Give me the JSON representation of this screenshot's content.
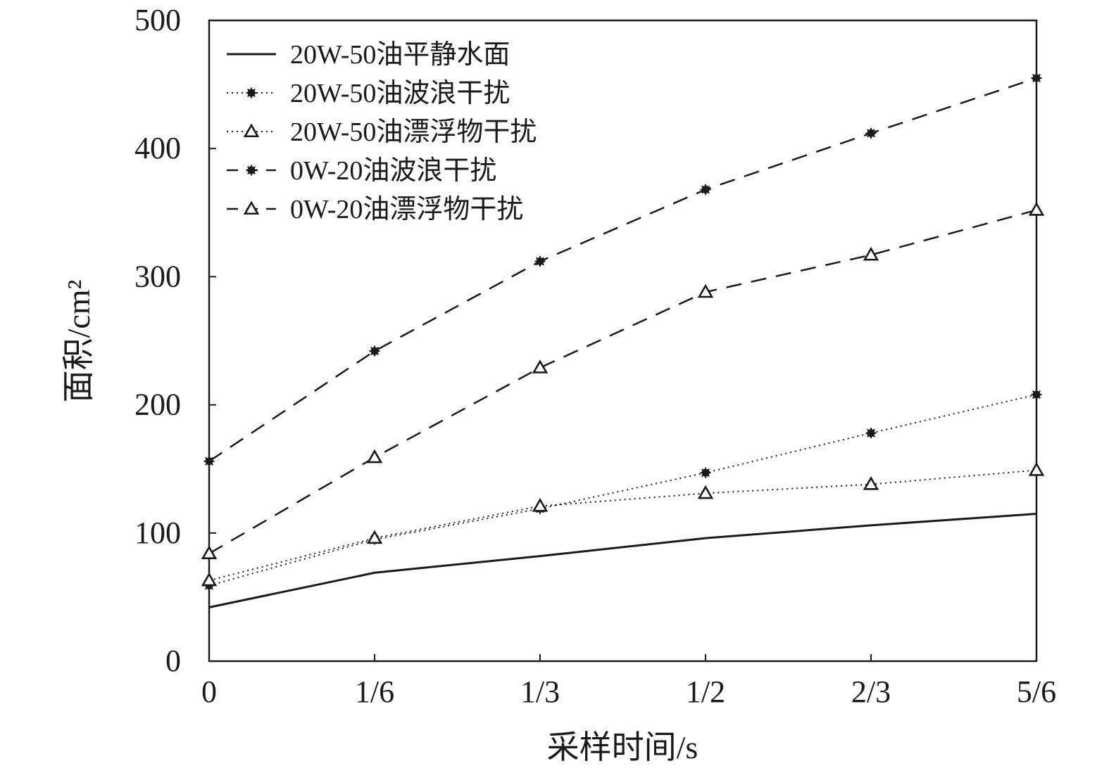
{
  "chart_data": {
    "type": "line",
    "xlabel": "采样时间/s",
    "ylabel": "面积/cm²",
    "categories": [
      "0",
      "1/6",
      "1/3",
      "1/2",
      "2/3",
      "5/6"
    ],
    "ylim": [
      0,
      500
    ],
    "yticks": [
      0,
      100,
      200,
      300,
      400,
      500
    ],
    "grid": false,
    "legend_position": "top-left",
    "series": [
      {
        "name": "20W-50油平静水面",
        "style": "solid",
        "marker": "none",
        "values": [
          42,
          69,
          82,
          96,
          106,
          115
        ]
      },
      {
        "name": "20W-50油波浪干扰",
        "style": "dotted",
        "marker": "star",
        "values": [
          59,
          95,
          119,
          147,
          178,
          208
        ]
      },
      {
        "name": "20W-50油漂浮物干扰",
        "style": "dotted",
        "marker": "triangle",
        "values": [
          63,
          96,
          121,
          131,
          138,
          149
        ]
      },
      {
        "name": "0W-20油波浪干扰",
        "style": "dashed",
        "marker": "star",
        "values": [
          156,
          242,
          312,
          368,
          412,
          455
        ]
      },
      {
        "name": "0W-20油漂浮物干扰",
        "style": "dashed",
        "marker": "triangle",
        "values": [
          84,
          159,
          229,
          288,
          317,
          352
        ]
      }
    ]
  }
}
